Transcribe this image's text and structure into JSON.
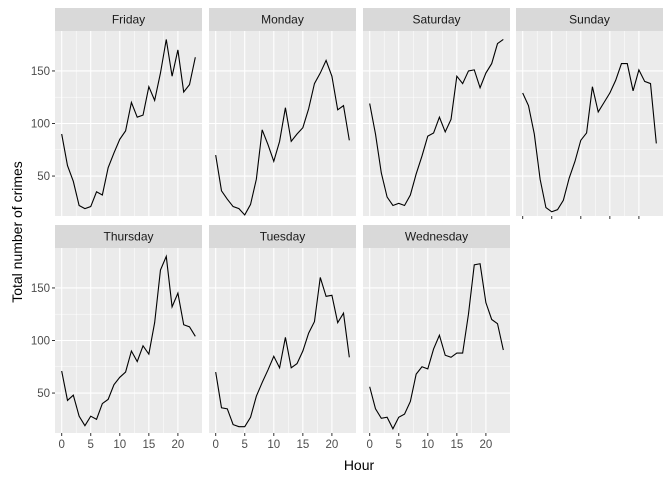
{
  "chart_data": {
    "type": "line",
    "xlabel": "Hour",
    "ylabel": "Total number of crimes",
    "x": [
      0,
      1,
      2,
      3,
      4,
      5,
      6,
      7,
      8,
      9,
      10,
      11,
      12,
      13,
      14,
      15,
      16,
      17,
      18,
      19,
      20,
      21,
      22,
      23
    ],
    "xlim": [
      -1.15,
      24.15
    ],
    "ylim": [
      12,
      188
    ],
    "x_ticks": [
      0,
      5,
      10,
      15,
      20
    ],
    "x_tick_labels": [
      "0",
      "5",
      "10",
      "15",
      "20"
    ],
    "y_ticks": [
      50,
      100,
      150
    ],
    "y_tick_labels": [
      "50",
      "100",
      "150"
    ],
    "grid": true,
    "facets": [
      {
        "name": "Friday",
        "values": [
          90,
          60,
          45,
          22,
          19,
          21,
          35,
          32,
          58,
          72,
          85,
          93,
          120,
          106,
          108,
          135,
          122,
          148,
          180,
          145,
          170,
          130,
          137,
          163
        ]
      },
      {
        "name": "Monday",
        "values": [
          70,
          36,
          28,
          21,
          19,
          13,
          23,
          47,
          94,
          80,
          64,
          83,
          115,
          83,
          90,
          96,
          114,
          138,
          148,
          160,
          145,
          113,
          117,
          84
        ]
      },
      {
        "name": "Saturday",
        "values": [
          119,
          90,
          53,
          30,
          22,
          24,
          22,
          32,
          52,
          69,
          88,
          91,
          106,
          92,
          104,
          145,
          138,
          150,
          151,
          134,
          148,
          157,
          176,
          180
        ]
      },
      {
        "name": "Sunday",
        "values": [
          129,
          117,
          90,
          47,
          20,
          16,
          18,
          27,
          48,
          64,
          84,
          91,
          135,
          111,
          120,
          129,
          141,
          157,
          157,
          131,
          151,
          140,
          138,
          81
        ]
      },
      {
        "name": "Thursday",
        "values": [
          71,
          43,
          48,
          28,
          19,
          28,
          25,
          40,
          44,
          58,
          65,
          70,
          90,
          80,
          95,
          87,
          117,
          167,
          180,
          132,
          145,
          115,
          113,
          104
        ]
      },
      {
        "name": "Tuesday",
        "values": [
          70,
          36,
          35,
          20,
          18,
          18,
          27,
          47,
          60,
          72,
          85,
          74,
          103,
          74,
          78,
          90,
          107,
          118,
          160,
          142,
          143,
          117,
          126,
          84
        ]
      },
      {
        "name": "Wednesday",
        "values": [
          56,
          35,
          26,
          27,
          16,
          27,
          30,
          42,
          68,
          75,
          73,
          92,
          105,
          86,
          84,
          88,
          88,
          125,
          172,
          173,
          136,
          120,
          116,
          91
        ]
      }
    ]
  },
  "colors": {
    "panel_background": "#ebebeb",
    "grid_major": "#ffffff",
    "strip_background": "#d9d9d9",
    "line": "#000000",
    "tick_mark": "#333333"
  }
}
